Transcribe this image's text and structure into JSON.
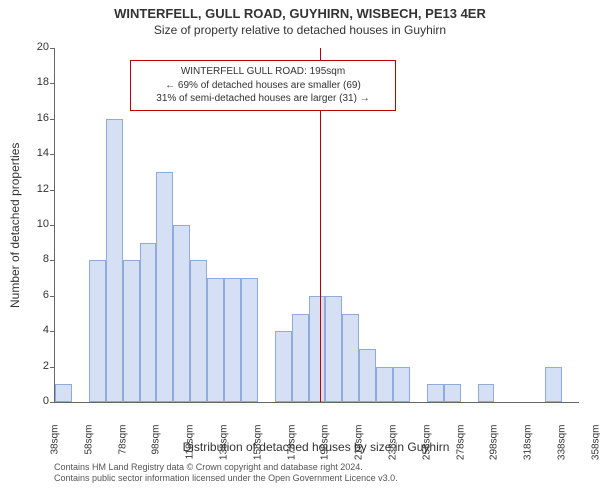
{
  "title": "WINTERFELL, GULL ROAD, GUYHIRN, WISBECH, PE13 4ER",
  "subtitle": "Size of property relative to detached houses in Guyhirn",
  "ylabel": "Number of detached properties",
  "xlabel": "Distribution of detached houses by size in Guyhirn",
  "footer1": "Contains HM Land Registry data © Crown copyright and database right 2024.",
  "footer2": "Contains public sector information licensed under the Open Government Licence v3.0.",
  "chart": {
    "type": "histogram",
    "bar_fill": "#d6e0f5",
    "bar_stroke": "#8faadc",
    "marker_color": "#c00000",
    "y": {
      "min": 0,
      "max": 20,
      "ticks": [
        0,
        2,
        4,
        6,
        8,
        10,
        12,
        14,
        16,
        18,
        20
      ]
    },
    "x": {
      "start": 38,
      "step": 20,
      "count": 21
    },
    "bars": [
      1,
      0,
      8,
      16,
      8,
      9,
      13,
      10,
      8,
      7,
      7,
      7,
      0,
      4,
      5,
      6,
      6,
      5,
      3,
      2,
      2,
      0,
      1,
      1,
      0,
      1,
      0,
      0,
      0,
      2,
      0
    ],
    "marker_value": 195,
    "annotation": {
      "l1": "WINTERFELL GULL ROAD: 195sqm",
      "l2": "← 69% of detached houses are smaller (69)",
      "l3": "31% of semi-detached houses are larger (31) →"
    }
  }
}
